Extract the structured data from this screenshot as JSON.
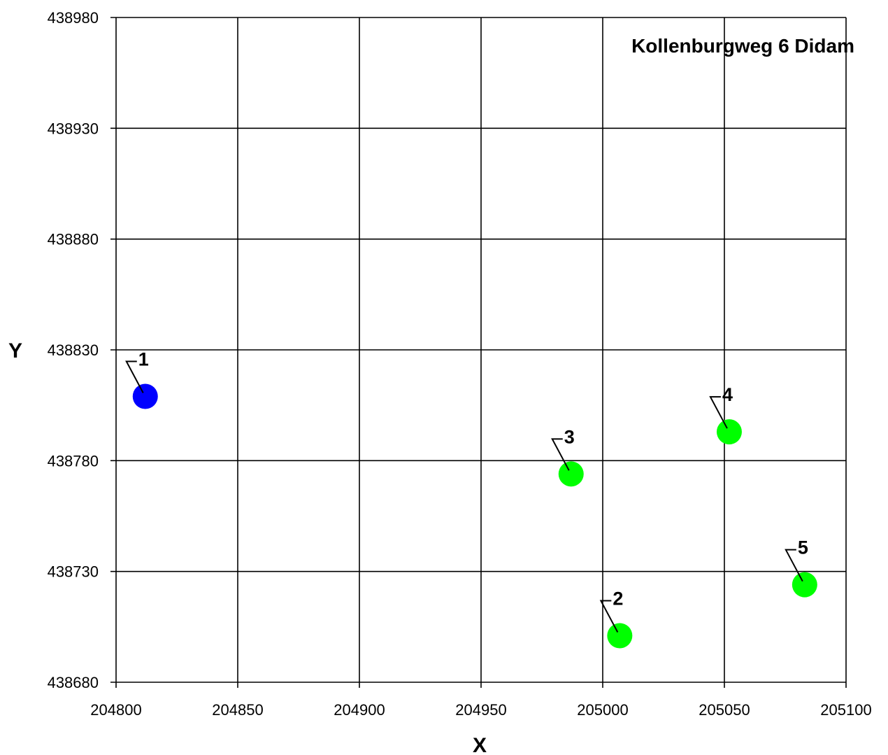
{
  "chart_data": {
    "type": "scatter",
    "title": "Kollenburgweg 6 Didam",
    "xlabel": "X",
    "ylabel": "Y",
    "xlim": [
      204800,
      205100
    ],
    "ylim": [
      438680,
      438980
    ],
    "xticks": [
      204800,
      204850,
      204900,
      204950,
      205000,
      205050,
      205100
    ],
    "yticks": [
      438680,
      438730,
      438780,
      438830,
      438880,
      438930,
      438980
    ],
    "grid": true,
    "points": [
      {
        "label": "1",
        "x": 204812,
        "y": 438809,
        "color": "#0000ff"
      },
      {
        "label": "2",
        "x": 205007,
        "y": 438701,
        "color": "#00ff00"
      },
      {
        "label": "3",
        "x": 204987,
        "y": 438774,
        "color": "#00ff00"
      },
      {
        "label": "4",
        "x": 205052,
        "y": 438793,
        "color": "#00ff00"
      },
      {
        "label": "5",
        "x": 205083,
        "y": 438724,
        "color": "#00ff00"
      }
    ]
  }
}
